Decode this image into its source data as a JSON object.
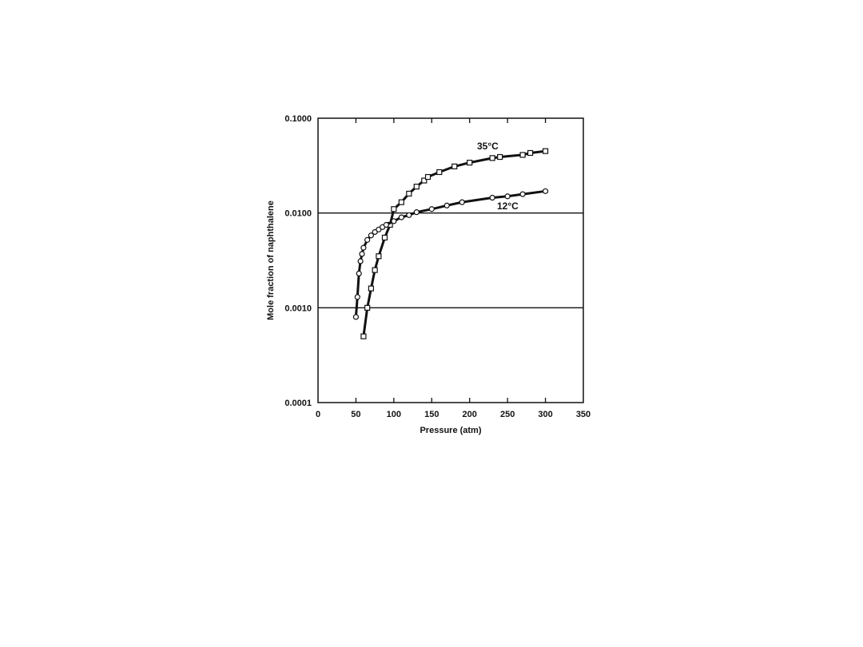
{
  "chart_data": {
    "type": "scatter",
    "title": "",
    "xlabel": "Pressure (atm)",
    "ylabel": "Mole fraction of naphthalene",
    "xlim": [
      0,
      350
    ],
    "ylim": [
      0.0001,
      0.1
    ],
    "y_scale": "log",
    "x_ticks": [
      "0",
      "50",
      "100",
      "150",
      "200",
      "250",
      "300",
      "350"
    ],
    "y_ticks": [
      "0.1000",
      "0.0100",
      "0.0010",
      "0.0001"
    ],
    "y_tick_values": [
      0.1,
      0.01,
      0.001,
      0.0001
    ],
    "grid": "horizontal at 0.01 and 0.001",
    "series": [
      {
        "name": "35°C",
        "marker": "square",
        "x": [
          60,
          65,
          70,
          75,
          80,
          88,
          95,
          100,
          110,
          120,
          130,
          140,
          145,
          160,
          180,
          200,
          230,
          240,
          270,
          280,
          300
        ],
        "y": [
          0.0005,
          0.001,
          0.0016,
          0.0025,
          0.0035,
          0.0055,
          0.0075,
          0.011,
          0.013,
          0.016,
          0.019,
          0.022,
          0.024,
          0.027,
          0.031,
          0.034,
          0.038,
          0.039,
          0.041,
          0.043,
          0.045
        ]
      },
      {
        "name": "12°C",
        "marker": "circle",
        "x": [
          50,
          52,
          54,
          56,
          58,
          60,
          65,
          70,
          75,
          80,
          85,
          90,
          100,
          110,
          120,
          130,
          150,
          170,
          190,
          230,
          250,
          270,
          300
        ],
        "y": [
          0.0008,
          0.0013,
          0.0023,
          0.0031,
          0.0037,
          0.0043,
          0.0052,
          0.0058,
          0.0063,
          0.0067,
          0.0071,
          0.0075,
          0.0082,
          0.009,
          0.0095,
          0.0102,
          0.011,
          0.012,
          0.013,
          0.0145,
          0.015,
          0.0158,
          0.017
        ]
      }
    ]
  }
}
